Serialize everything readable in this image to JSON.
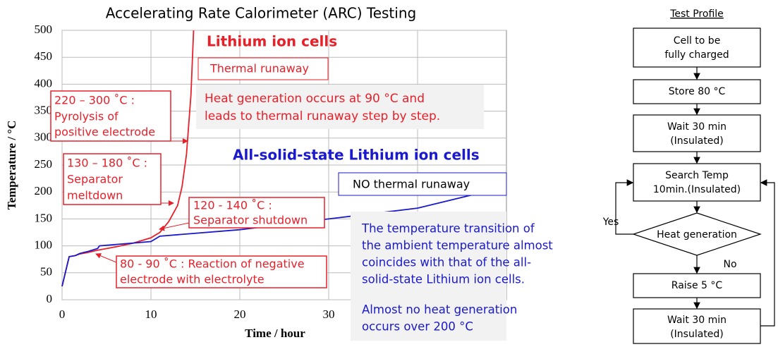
{
  "chart_data": {
    "type": "line",
    "title": "Accelerating Rate Calorimeter (ARC) Testing",
    "x_label": "Time / hour",
    "y_label": "Temperature / °C",
    "xlim": [
      0,
      50
    ],
    "xticks": [
      0,
      10,
      20,
      30,
      40
    ],
    "ylim": [
      0,
      500
    ],
    "yticks": [
      0,
      50,
      100,
      150,
      200,
      250,
      300,
      350,
      400,
      450,
      500
    ],
    "grid": true,
    "series": [
      {
        "name": "Lithium ion cells",
        "color": "#e8202a",
        "x": [
          0,
          0.8,
          1.5,
          2,
          3,
          4,
          6,
          8,
          10,
          11,
          12,
          13,
          13.5,
          14,
          14.5,
          14.8
        ],
        "values": [
          25,
          80,
          82,
          85,
          88,
          92,
          98,
          105,
          115,
          125,
          145,
          175,
          210,
          270,
          380,
          500
        ]
      },
      {
        "name": "All-solid-state Lithium ion cells",
        "color": "#1a1acc",
        "x": [
          0,
          0.8,
          1.5,
          2,
          3,
          4,
          4.2,
          10,
          11,
          20,
          30,
          40,
          50
        ],
        "values": [
          25,
          80,
          82,
          86,
          90,
          95,
          100,
          108,
          118,
          130,
          150,
          170,
          210
        ]
      }
    ],
    "annotations": {
      "thermal_runaway": "Thermal runaway",
      "heat_note": [
        "Heat generation occurs at 90 °C and",
        "leads to thermal runaway step by step."
      ],
      "no_runaway": "NO thermal runaway",
      "pyrolysis": [
        "220 – 300 ˚C :",
        "Pyrolysis of",
        "positive electrode"
      ],
      "meltdown": [
        "130 – 180 ˚C :",
        "Separator",
        "meltdown"
      ],
      "shutdown": [
        "120 - 140 ˚C :",
        "Separator shutdown"
      ],
      "reaction": [
        "80 - 90 ˚C : Reaction of negative",
        "electrode with electrolyte"
      ],
      "ambient_note": [
        "The temperature transition of",
        "the ambient temperature almost",
        "coincides with that of the all-",
        "solid-state Lithium ion cells.",
        "Almost no heat generation",
        "occurs over 200 °C"
      ]
    }
  },
  "flowchart": {
    "title": "Test Profile",
    "nodes": [
      [
        "Cell to be",
        "fully charged"
      ],
      [
        "Store 80 °C"
      ],
      [
        "Wait 30 min",
        "(Insulated)"
      ],
      [
        "Search Temp",
        "10min.(Insulated)"
      ],
      [
        "Heat generation"
      ],
      [
        "Raise 5 °C"
      ],
      [
        "Wait 30 min",
        "(Insulated)"
      ]
    ],
    "yes": "Yes",
    "no": "No"
  }
}
